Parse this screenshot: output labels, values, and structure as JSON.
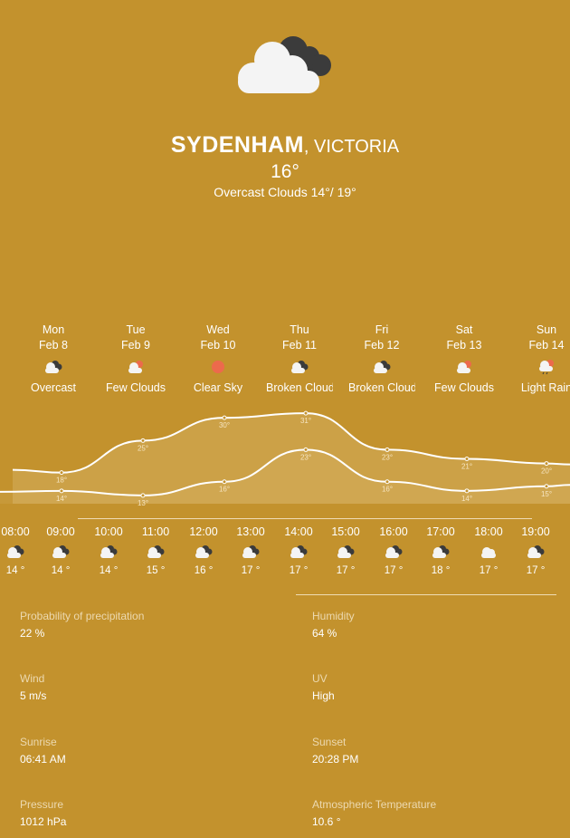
{
  "location": {
    "city": "SYDENHAM",
    "region": ", VICTORIA"
  },
  "current": {
    "temp": "16°",
    "summary": "Overcast Clouds 14°/ 19°",
    "icon": "overcast-clouds-icon"
  },
  "daily": [
    {
      "day": "Mon",
      "date": "Feb 8",
      "cond": "Overcast",
      "icon": "overcast-icon",
      "max": "18°",
      "min": "14°"
    },
    {
      "day": "Tue",
      "date": "Feb 9",
      "cond": "Few Clouds",
      "icon": "few-clouds-icon",
      "max": "25°",
      "min": "13°"
    },
    {
      "day": "Wed",
      "date": "Feb 10",
      "cond": "Clear Sky",
      "icon": "sun-icon",
      "max": "30°",
      "min": "16°"
    },
    {
      "day": "Thu",
      "date": "Feb 11",
      "cond": "Broken Clouds",
      "icon": "broken-clouds-icon",
      "max": "31°",
      "min": "23°"
    },
    {
      "day": "Fri",
      "date": "Feb 12",
      "cond": "Broken Clouds",
      "icon": "broken-clouds-icon",
      "max": "23°",
      "min": "16°"
    },
    {
      "day": "Sat",
      "date": "Feb 13",
      "cond": "Few Clouds",
      "icon": "few-clouds-icon",
      "max": "21°",
      "min": "14°"
    },
    {
      "day": "Sun",
      "date": "Feb 14",
      "cond": "Light Rain",
      "icon": "light-rain-icon",
      "max": "20°",
      "min": "15°"
    }
  ],
  "chart_data": {
    "type": "area",
    "categories": [
      "Mon",
      "Tue",
      "Wed",
      "Thu",
      "Fri",
      "Sat",
      "Sun"
    ],
    "series": [
      {
        "values": [
          18,
          25,
          30,
          31,
          23,
          21,
          20
        ]
      },
      {
        "values": [
          14,
          13,
          16,
          23,
          16,
          14,
          15
        ]
      }
    ],
    "ylim": [
      10,
      33
    ],
    "grid": false
  },
  "hourly": [
    {
      "time": "08:00",
      "temp": "14 °",
      "icon": "broken-clouds-icon"
    },
    {
      "time": "09:00",
      "temp": "14 °",
      "icon": "cloud-icon"
    },
    {
      "time": "10:00",
      "temp": "14 °",
      "icon": "cloud-icon"
    },
    {
      "time": "11:00",
      "temp": "15 °",
      "icon": "broken-clouds-icon"
    },
    {
      "time": "12:00",
      "temp": "16 °",
      "icon": "broken-clouds-icon"
    },
    {
      "time": "13:00",
      "temp": "17 °",
      "icon": "broken-clouds-icon"
    },
    {
      "time": "14:00",
      "temp": "17 °",
      "icon": "broken-clouds-icon"
    },
    {
      "time": "15:00",
      "temp": "17 °",
      "icon": "cloud-icon"
    },
    {
      "time": "16:00",
      "temp": "17 °",
      "icon": "broken-clouds-icon"
    },
    {
      "time": "17:00",
      "temp": "18 °",
      "icon": "cloud-icon"
    },
    {
      "time": "18:00",
      "temp": "17 °",
      "icon": "cloud-icon"
    },
    {
      "time": "19:00",
      "temp": "17 °",
      "icon": "broken-clouds-icon"
    }
  ],
  "details": [
    {
      "label": "Probability of precipitation",
      "value": "22 %"
    },
    {
      "label": "Humidity",
      "value": "64 %"
    },
    {
      "label": "Wind",
      "value": "5 m/s"
    },
    {
      "label": "UV",
      "value": "High"
    },
    {
      "label": "Sunrise",
      "value": "06:41 AM"
    },
    {
      "label": "Sunset",
      "value": "20:28 PM"
    },
    {
      "label": "Pressure",
      "value": "1012 hPa"
    },
    {
      "label": "Atmospheric Temperature",
      "value": "10.6 °"
    }
  ]
}
